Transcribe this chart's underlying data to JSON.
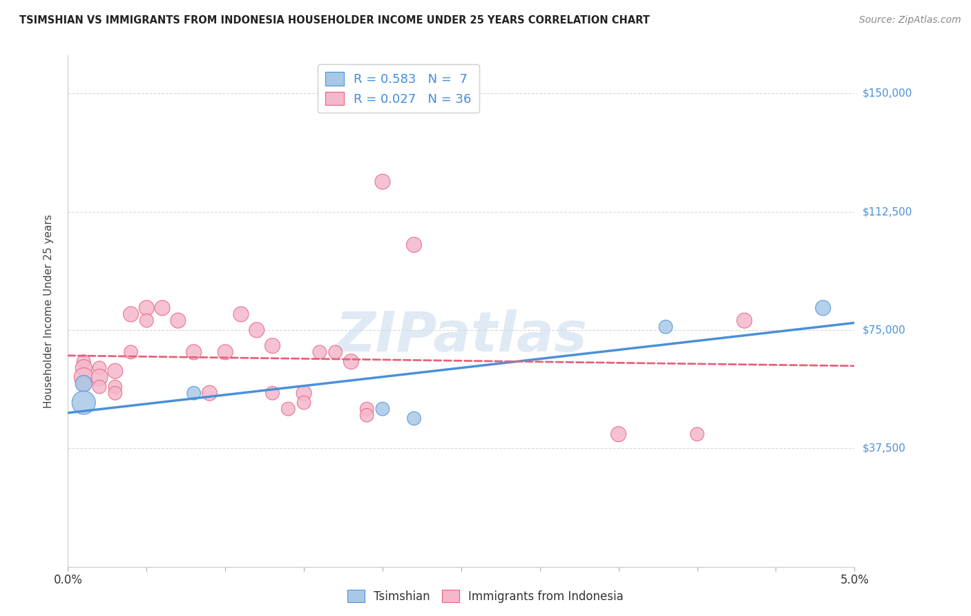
{
  "title": "TSIMSHIAN VS IMMIGRANTS FROM INDONESIA HOUSEHOLDER INCOME UNDER 25 YEARS CORRELATION CHART",
  "source": "Source: ZipAtlas.com",
  "ylabel": "Householder Income Under 25 years",
  "xlim": [
    0.0,
    0.05
  ],
  "ylim": [
    0,
    162000
  ],
  "ytick_positions": [
    0,
    37500,
    75000,
    112500,
    150000
  ],
  "ytick_labels": [
    "",
    "$37,500",
    "$75,000",
    "$112,500",
    "$150,000"
  ],
  "background_color": "#ffffff",
  "grid_color": "#d8d8d8",
  "tsimshian_color": "#a8c8e8",
  "indonesia_color": "#f4b8cc",
  "tsimshian_line_color": "#4a90d9",
  "indonesia_line_color": "#e8607a",
  "legend_r_tsimshian": "0.583",
  "legend_n_tsimshian": "7",
  "legend_r_indonesia": "0.027",
  "legend_n_indonesia": "36",
  "watermark": "ZIPatlas",
  "tsimshian_points": [
    [
      0.001,
      58000
    ],
    [
      0.001,
      52000
    ],
    [
      0.008,
      55000
    ],
    [
      0.02,
      50000
    ],
    [
      0.022,
      47000
    ],
    [
      0.038,
      76000
    ],
    [
      0.048,
      82000
    ]
  ],
  "tsimshian_sizes": [
    300,
    600,
    200,
    200,
    200,
    200,
    250
  ],
  "indonesia_points": [
    [
      0.001,
      65000
    ],
    [
      0.001,
      63000
    ],
    [
      0.001,
      60000
    ],
    [
      0.001,
      58000
    ],
    [
      0.002,
      63000
    ],
    [
      0.002,
      60000
    ],
    [
      0.002,
      57000
    ],
    [
      0.003,
      62000
    ],
    [
      0.003,
      57000
    ],
    [
      0.003,
      55000
    ],
    [
      0.004,
      80000
    ],
    [
      0.004,
      68000
    ],
    [
      0.005,
      82000
    ],
    [
      0.005,
      78000
    ],
    [
      0.006,
      82000
    ],
    [
      0.007,
      78000
    ],
    [
      0.008,
      68000
    ],
    [
      0.009,
      55000
    ],
    [
      0.01,
      68000
    ],
    [
      0.011,
      80000
    ],
    [
      0.012,
      75000
    ],
    [
      0.013,
      70000
    ],
    [
      0.013,
      55000
    ],
    [
      0.014,
      50000
    ],
    [
      0.015,
      55000
    ],
    [
      0.015,
      52000
    ],
    [
      0.016,
      68000
    ],
    [
      0.017,
      68000
    ],
    [
      0.018,
      65000
    ],
    [
      0.019,
      50000
    ],
    [
      0.019,
      48000
    ],
    [
      0.02,
      122000
    ],
    [
      0.022,
      102000
    ],
    [
      0.035,
      42000
    ],
    [
      0.04,
      42000
    ],
    [
      0.043,
      78000
    ]
  ],
  "indonesia_sizes": [
    200,
    300,
    400,
    250,
    200,
    300,
    200,
    250,
    200,
    200,
    250,
    200,
    250,
    200,
    250,
    250,
    250,
    250,
    250,
    250,
    250,
    250,
    200,
    200,
    250,
    200,
    200,
    200,
    250,
    200,
    200,
    250,
    250,
    250,
    200,
    250
  ]
}
